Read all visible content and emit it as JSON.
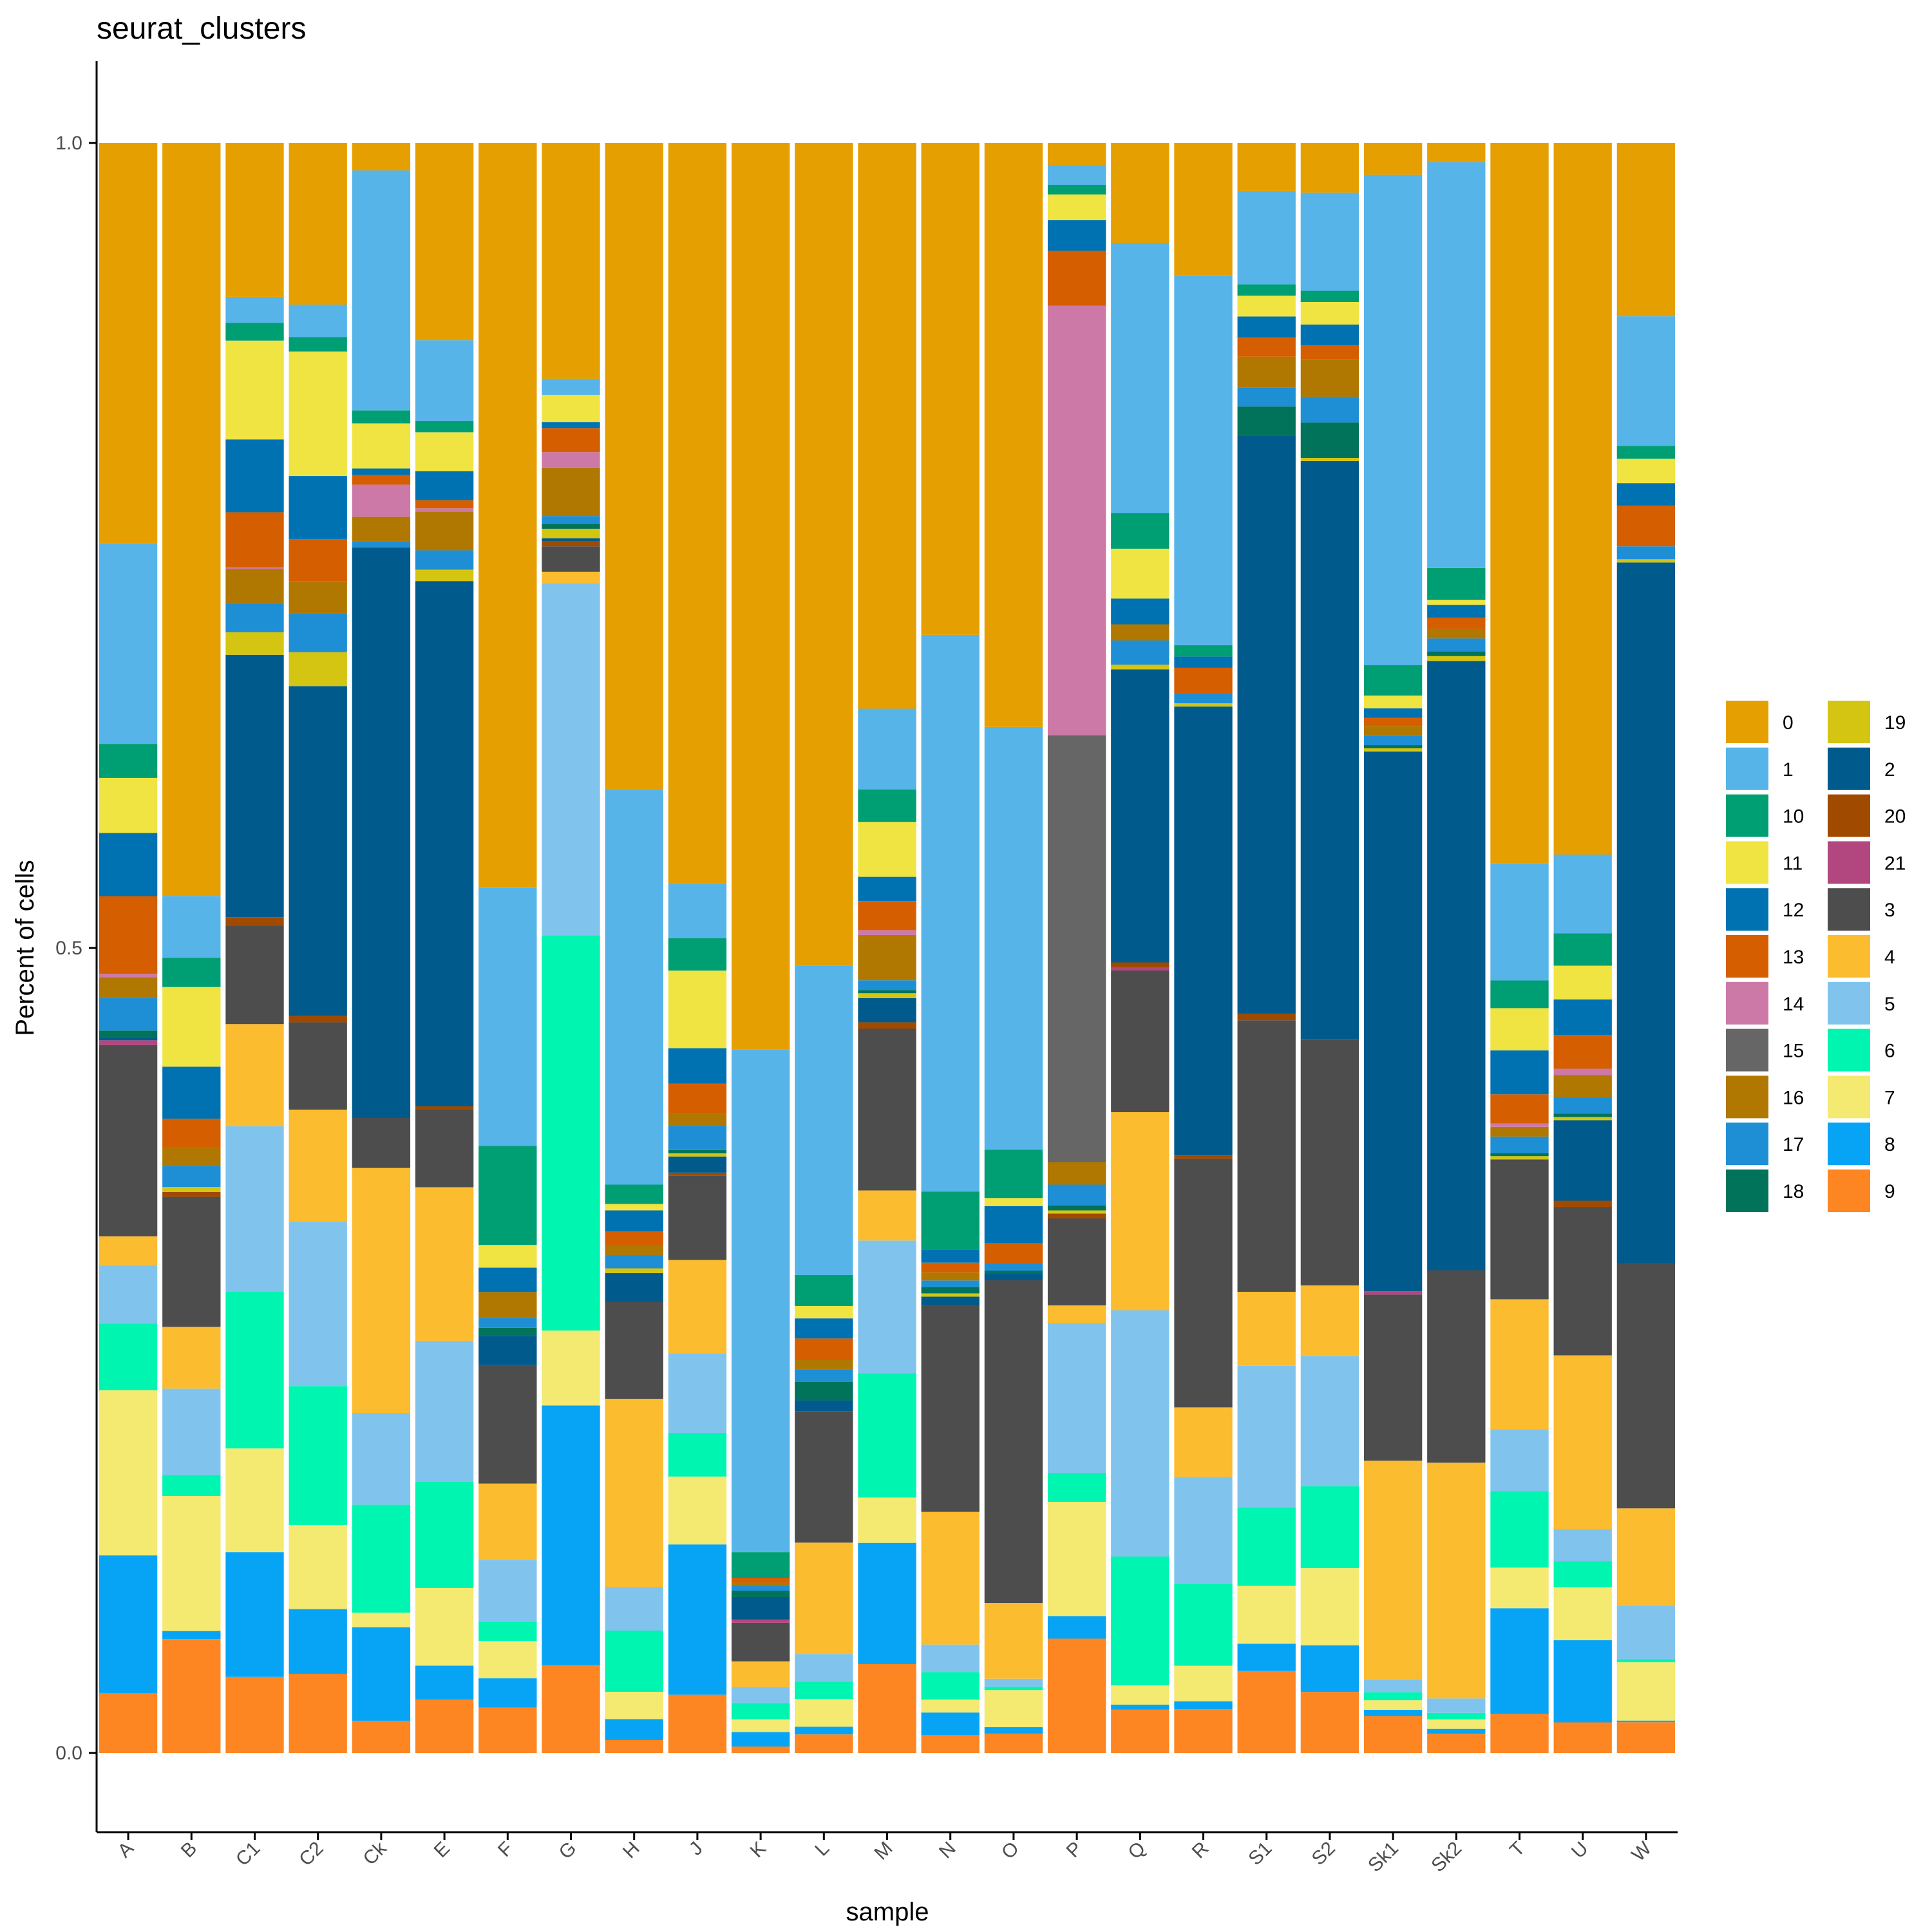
{
  "chart_data": {
    "type": "bar",
    "stacked": true,
    "title": "seurat_clusters",
    "xlabel": "sample",
    "ylabel": "Percent of cells",
    "ylim": [
      0,
      1
    ],
    "yticks": [
      "0.0",
      "0.5",
      "1.0"
    ],
    "grid": false,
    "legend_position": "right",
    "categories": [
      "A",
      "B",
      "C1",
      "C2",
      "Ck",
      "E",
      "F",
      "G",
      "H",
      "J",
      "K",
      "L",
      "M",
      "N",
      "O",
      "P",
      "Q",
      "R",
      "S1",
      "S2",
      "Sk1",
      "Sk2",
      "T",
      "U",
      "W"
    ],
    "stack_order": [
      "9",
      "8",
      "7",
      "6",
      "5",
      "4",
      "3",
      "21",
      "20",
      "2",
      "19",
      "18",
      "17",
      "16",
      "15",
      "14",
      "13",
      "12",
      "11",
      "10",
      "1",
      "0"
    ],
    "series": [
      {
        "name": "0",
        "color": "#E69F00",
        "values": [
          0.247,
          0.463,
          0.095,
          0.1,
          0.017,
          0.122,
          0.459,
          0.148,
          0.402,
          0.458,
          0.564,
          0.532,
          0.35,
          0.304,
          0.362,
          0.014,
          0.062,
          0.082,
          0.03,
          0.031,
          0.02,
          0.012,
          0.443,
          0.442,
          0.107
        ]
      },
      {
        "name": "1",
        "color": "#56B4E9",
        "values": [
          0.124,
          0.038,
          0.016,
          0.02,
          0.149,
          0.05,
          0.159,
          0.01,
          0.245,
          0.034,
          0.313,
          0.2,
          0.05,
          0.344,
          0.262,
          0.012,
          0.168,
          0.229,
          0.058,
          0.061,
          0.307,
          0.253,
          0.072,
          0.049,
          0.08
        ]
      },
      {
        "name": "10",
        "color": "#009E73",
        "values": [
          0.021,
          0.018,
          0.011,
          0.009,
          0.008,
          0.007,
          0.061,
          0.0,
          0.012,
          0.02,
          0.016,
          0.02,
          0.02,
          0.036,
          0.03,
          0.006,
          0.022,
          0.007,
          0.007,
          0.007,
          0.019,
          0.02,
          0.017,
          0.02,
          0.008
        ]
      },
      {
        "name": "11",
        "color": "#F0E442",
        "values": [
          0.034,
          0.049,
          0.061,
          0.077,
          0.028,
          0.024,
          0.014,
          0.017,
          0.004,
          0.048,
          0.0,
          0.008,
          0.034,
          0.0,
          0.005,
          0.016,
          0.031,
          0.0,
          0.013,
          0.014,
          0.008,
          0.003,
          0.026,
          0.021,
          0.015
        ]
      },
      {
        "name": "12",
        "color": "#0072B2",
        "values": [
          0.039,
          0.032,
          0.045,
          0.039,
          0.004,
          0.018,
          0.015,
          0.004,
          0.013,
          0.022,
          0.0,
          0.013,
          0.015,
          0.008,
          0.023,
          0.019,
          0.016,
          0.007,
          0.013,
          0.013,
          0.006,
          0.008,
          0.027,
          0.022,
          0.014
        ]
      },
      {
        "name": "13",
        "color": "#D55E00",
        "values": [
          0.048,
          0.018,
          0.034,
          0.026,
          0.006,
          0.005,
          0.0,
          0.015,
          0.009,
          0.018,
          0.003,
          0.014,
          0.018,
          0.006,
          0.013,
          0.034,
          0.0,
          0.016,
          0.012,
          0.009,
          0.005,
          0.007,
          0.018,
          0.021,
          0.025
        ]
      },
      {
        "name": "14",
        "color": "#CC79A7",
        "values": [
          0.002,
          0.0,
          0.001,
          0.0,
          0.02,
          0.002,
          0.0,
          0.01,
          0.0,
          0.0,
          0.0,
          0.0,
          0.003,
          0.0,
          0.0,
          0.267,
          0.0,
          0.0,
          0.0,
          0.0,
          0.0,
          0.0,
          0.002,
          0.004,
          0.0
        ]
      },
      {
        "name": "16",
        "color": "#B07800",
        "values": [
          0.013,
          0.011,
          0.021,
          0.02,
          0.015,
          0.024,
          0.016,
          0.03,
          0.006,
          0.008,
          0.002,
          0.006,
          0.028,
          0.005,
          0.0,
          0.014,
          0.01,
          0.0,
          0.019,
          0.023,
          0.006,
          0.006,
          0.006,
          0.014,
          0.0
        ]
      },
      {
        "name": "17",
        "color": "#1E8FD5",
        "values": [
          0.02,
          0.013,
          0.018,
          0.024,
          0.004,
          0.012,
          0.006,
          0.005,
          0.008,
          0.015,
          0.003,
          0.008,
          0.006,
          0.004,
          0.004,
          0.013,
          0.015,
          0.006,
          0.012,
          0.016,
          0.006,
          0.008,
          0.01,
          0.01,
          0.008
        ]
      },
      {
        "name": "18",
        "color": "#00735A",
        "values": [
          0.004,
          0.0,
          0.0,
          0.0,
          0.0,
          0.0,
          0.005,
          0.003,
          0.0,
          0.002,
          0.004,
          0.012,
          0.002,
          0.004,
          0.002,
          0.003,
          0.0,
          0.0,
          0.018,
          0.022,
          0.002,
          0.003,
          0.002,
          0.002,
          0.0
        ]
      },
      {
        "name": "19",
        "color": "#D4C513",
        "values": [
          0.0,
          0.003,
          0.014,
          0.021,
          0.0,
          0.007,
          0.0,
          0.006,
          0.003,
          0.002,
          0.0,
          0.0,
          0.003,
          0.002,
          0.0,
          0.002,
          0.003,
          0.002,
          0.0,
          0.002,
          0.002,
          0.003,
          0.002,
          0.002,
          0.002
        ]
      },
      {
        "name": "2",
        "color": "#005A8C",
        "values": [
          0.002,
          0.0,
          0.162,
          0.204,
          0.354,
          0.325,
          0.018,
          0.002,
          0.018,
          0.01,
          0.014,
          0.007,
          0.015,
          0.005,
          0.004,
          0.0,
          0.182,
          0.278,
          0.36,
          0.36,
          0.338,
          0.38,
          0.0,
          0.05,
          0.433
        ]
      },
      {
        "name": "20",
        "color": "#A04A00",
        "values": [
          0.0,
          0.003,
          0.005,
          0.004,
          0.0,
          0.002,
          0.0,
          0.003,
          0.0,
          0.002,
          0.0,
          0.0,
          0.004,
          0.0,
          0.0,
          0.003,
          0.003,
          0.002,
          0.004,
          0.0,
          0.0,
          0.0,
          0.0,
          0.004,
          0.0
        ]
      },
      {
        "name": "21",
        "color": "#B2477F",
        "values": [
          0.003,
          0.0,
          0.0,
          0.0,
          0.0,
          0.0,
          0.0,
          0.0,
          0.0,
          0.0,
          0.002,
          0.0,
          0.0,
          0.0,
          0.0,
          0.0,
          0.002,
          0.0,
          0.0,
          0.0,
          0.002,
          0.0,
          0.0,
          0.0,
          0.0
        ]
      },
      {
        "name": "15",
        "color": "#666666",
        "values": [
          0.0,
          0.0,
          0.0,
          0.0,
          0.0,
          0.0,
          0.0,
          0.0,
          0.0,
          0.0,
          0.0,
          0.0,
          0.0,
          0.0,
          0.0,
          0.265,
          0.0,
          0.0,
          0.0,
          0.0,
          0.0,
          0.0,
          0.0,
          0.0,
          0.0
        ]
      },
      {
        "name": "3",
        "color": "#4D4D4D",
        "values": [
          0.118,
          0.08,
          0.061,
          0.054,
          0.031,
          0.048,
          0.073,
          0.016,
          0.06,
          0.052,
          0.024,
          0.085,
          0.1,
          0.128,
          0.2,
          0.054,
          0.088,
          0.154,
          0.169,
          0.153,
          0.104,
          0.12,
          0.086,
          0.092,
          0.151
        ]
      },
      {
        "name": "4",
        "color": "#FBBC2F",
        "values": [
          0.018,
          0.038,
          0.063,
          0.069,
          0.152,
          0.095,
          0.047,
          0.007,
          0.117,
          0.058,
          0.016,
          0.072,
          0.031,
          0.082,
          0.047,
          0.011,
          0.123,
          0.043,
          0.046,
          0.044,
          0.137,
          0.147,
          0.08,
          0.108,
          0.06
        ]
      },
      {
        "name": "5",
        "color": "#80C4EE",
        "values": [
          0.036,
          0.053,
          0.102,
          0.102,
          0.057,
          0.087,
          0.038,
          0.221,
          0.027,
          0.049,
          0.01,
          0.018,
          0.082,
          0.017,
          0.005,
          0.093,
          0.153,
          0.066,
          0.088,
          0.081,
          0.008,
          0.009,
          0.038,
          0.02,
          0.033
        ]
      },
      {
        "name": "6",
        "color": "#00F5B0",
        "values": [
          0.041,
          0.013,
          0.097,
          0.086,
          0.067,
          0.066,
          0.012,
          0.248,
          0.038,
          0.027,
          0.01,
          0.011,
          0.077,
          0.017,
          0.002,
          0.018,
          0.08,
          0.051,
          0.049,
          0.051,
          0.005,
          0.004,
          0.047,
          0.016,
          0.002
        ]
      },
      {
        "name": "7",
        "color": "#F4E971",
        "values": [
          0.102,
          0.083,
          0.064,
          0.052,
          0.009,
          0.048,
          0.023,
          0.047,
          0.017,
          0.042,
          0.008,
          0.018,
          0.028,
          0.008,
          0.023,
          0.071,
          0.012,
          0.022,
          0.036,
          0.048,
          0.006,
          0.006,
          0.025,
          0.033,
          0.036
        ]
      },
      {
        "name": "8",
        "color": "#07A4F5",
        "values": [
          0.085,
          0.005,
          0.077,
          0.04,
          0.058,
          0.021,
          0.018,
          0.163,
          0.013,
          0.093,
          0.009,
          0.005,
          0.075,
          0.014,
          0.004,
          0.014,
          0.003,
          0.005,
          0.017,
          0.029,
          0.004,
          0.003,
          0.065,
          0.051,
          0.001
        ]
      },
      {
        "name": "9",
        "color": "#FD8622",
        "values": [
          0.037,
          0.07,
          0.047,
          0.049,
          0.02,
          0.033,
          0.028,
          0.055,
          0.008,
          0.036,
          0.004,
          0.012,
          0.055,
          0.011,
          0.012,
          0.071,
          0.027,
          0.027,
          0.051,
          0.038,
          0.023,
          0.012,
          0.024,
          0.019,
          0.019
        ]
      }
    ],
    "legend": [
      [
        "0",
        "#E69F00"
      ],
      [
        "1",
        "#56B4E9"
      ],
      [
        "10",
        "#009E73"
      ],
      [
        "11",
        "#F0E442"
      ],
      [
        "12",
        "#0072B2"
      ],
      [
        "13",
        "#D55E00"
      ],
      [
        "14",
        "#CC79A7"
      ],
      [
        "15",
        "#666666"
      ],
      [
        "16",
        "#B07800"
      ],
      [
        "17",
        "#1E8FD5"
      ],
      [
        "18",
        "#00735A"
      ],
      [
        "19",
        "#D4C513"
      ],
      [
        "2",
        "#005A8C"
      ],
      [
        "20",
        "#A04A00"
      ],
      [
        "21",
        "#B2477F"
      ],
      [
        "3",
        "#4D4D4D"
      ],
      [
        "4",
        "#FBBC2F"
      ],
      [
        "5",
        "#80C4EE"
      ],
      [
        "6",
        "#00F5B0"
      ],
      [
        "7",
        "#F4E971"
      ],
      [
        "8",
        "#07A4F5"
      ],
      [
        "9",
        "#FD8622"
      ]
    ]
  }
}
